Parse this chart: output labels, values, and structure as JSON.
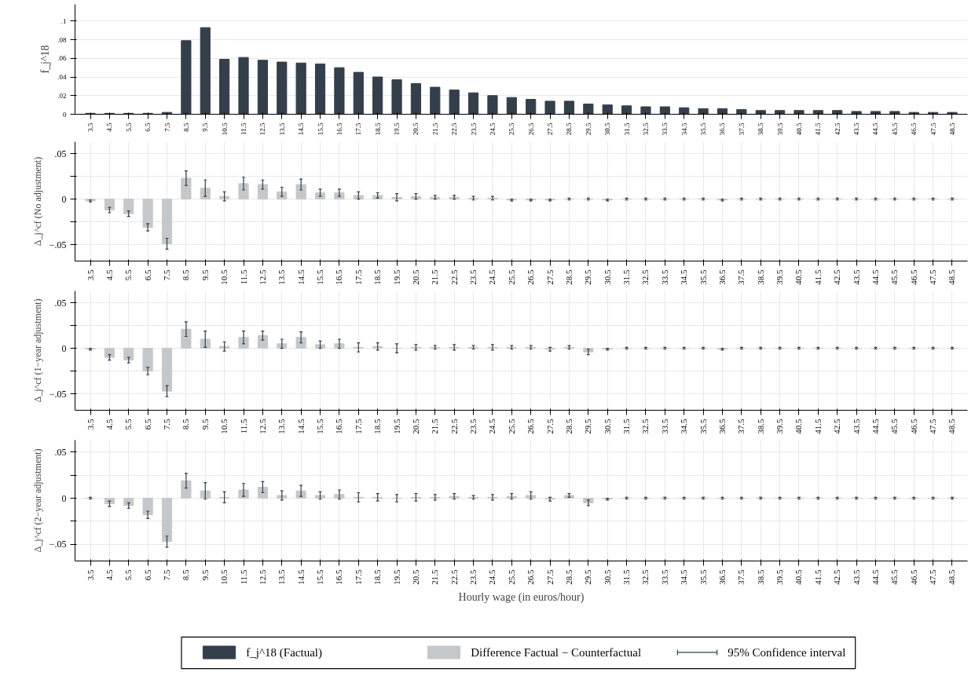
{
  "chart_data": [
    {
      "type": "bar",
      "ylabel": "f_j^18",
      "categories": [
        "3.5",
        "4.5",
        "5.5",
        "6.5",
        "7.5",
        "8.5",
        "9.5",
        "10.5",
        "11.5",
        "12.5",
        "13.5",
        "14.5",
        "15.5",
        "16.5",
        "17.5",
        "18.5",
        "19.5",
        "20.5",
        "21.5",
        "22.5",
        "23.5",
        "24.5",
        "25.5",
        "26.5",
        "27.5",
        "28.5",
        "29.5",
        "30.5",
        "31.5",
        "32.5",
        "33.5",
        "34.5",
        "35.5",
        "36.5",
        "37.5",
        "38.5",
        "39.5",
        "40.5",
        "41.5",
        "42.5",
        "43.5",
        "44.5",
        "45.5",
        "46.5",
        "47.5",
        "48.5"
      ],
      "series": [
        {
          "name": "f_j^18 (Factual)",
          "color": "#333f4a",
          "values": [
            0.001,
            0.001,
            0.001,
            0.001,
            0.002,
            0.079,
            0.093,
            0.059,
            0.061,
            0.058,
            0.056,
            0.055,
            0.054,
            0.05,
            0.045,
            0.04,
            0.037,
            0.033,
            0.029,
            0.026,
            0.023,
            0.02,
            0.018,
            0.016,
            0.014,
            0.014,
            0.011,
            0.01,
            0.009,
            0.008,
            0.008,
            0.007,
            0.006,
            0.006,
            0.005,
            0.004,
            0.004,
            0.004,
            0.004,
            0.004,
            0.003,
            0.003,
            0.003,
            0.002,
            0.002,
            0.002
          ]
        }
      ],
      "ylim": [
        0,
        0.118
      ],
      "yticks": [
        0,
        {
          "value": 0.02,
          "label": ".02"
        },
        {
          "value": 0.04,
          "label": ".04"
        },
        {
          "value": 0.06,
          "label": ".06"
        },
        {
          "value": 0.08,
          "label": ".08"
        },
        {
          "value": 0.1,
          "label": ".1"
        }
      ],
      "grid": "y",
      "legend": "bottom"
    },
    {
      "type": "bar",
      "ylabel": "Δ_j^cf (No adjustment)",
      "categories": [
        "3.5",
        "4.5",
        "5.5",
        "6.5",
        "7.5",
        "8.5",
        "9.5",
        "10.5",
        "11.5",
        "12.5",
        "13.5",
        "14.5",
        "15.5",
        "16.5",
        "17.5",
        "18.5",
        "19.5",
        "20.5",
        "21.5",
        "22.5",
        "23.5",
        "24.5",
        "25.5",
        "26.5",
        "27.5",
        "28.5",
        "29.5",
        "30.5",
        "31.5",
        "32.5",
        "33.5",
        "34.5",
        "35.5",
        "36.5",
        "37.5",
        "38.5",
        "39.5",
        "40.5",
        "41.5",
        "42.5",
        "43.5",
        "44.5",
        "45.5",
        "46.5",
        "47.5",
        "48.5"
      ],
      "series": [
        {
          "name": "Difference Factual − Counterfactual",
          "color": "#c5c8cb",
          "values": [
            -0.002,
            -0.012,
            -0.016,
            -0.031,
            -0.049,
            0.023,
            0.012,
            0.003,
            0.017,
            0.016,
            0.008,
            0.016,
            0.007,
            0.007,
            0.004,
            0.004,
            0.002,
            0.003,
            0.002,
            0.002,
            0.001,
            0.001,
            -0.001,
            -0.001,
            -0.001,
            0,
            0,
            -0.001,
            0,
            0,
            0,
            0,
            0,
            -0.001,
            0,
            0,
            0,
            0,
            0,
            0,
            0,
            0,
            0,
            0,
            0,
            0
          ],
          "errors": [
            0.001,
            0.003,
            0.003,
            0.004,
            0.006,
            0.008,
            0.009,
            0.005,
            0.007,
            0.005,
            0.005,
            0.006,
            0.004,
            0.004,
            0.004,
            0.003,
            0.004,
            0.003,
            0.002,
            0.002,
            0.002,
            0.002,
            0.001,
            0.001,
            0.001,
            0.001,
            0.001,
            0.001,
            0.001,
            0.001,
            0.001,
            0.001,
            0.001,
            0.001,
            0.001,
            0.001,
            0.001,
            0.001,
            0.001,
            0.001,
            0.001,
            0.001,
            0.001,
            0.001,
            0.001,
            0.001
          ]
        }
      ],
      "ylim": [
        -0.068,
        0.063
      ],
      "yticks": [
        {
          "value": -0.05,
          "label": "−.05"
        },
        {
          "value": -0.025,
          "label": null
        },
        0,
        {
          "value": 0.025,
          "label": null
        },
        {
          "value": 0.05,
          "label": ".05"
        }
      ],
      "grid": true,
      "legend": "bottom"
    },
    {
      "type": "bar",
      "ylabel": "Δ_j^cf (1−year adjustment)",
      "categories": [
        "3.5",
        "4.5",
        "5.5",
        "6.5",
        "7.5",
        "8.5",
        "9.5",
        "10.5",
        "11.5",
        "12.5",
        "13.5",
        "14.5",
        "15.5",
        "16.5",
        "17.5",
        "18.5",
        "19.5",
        "20.5",
        "21.5",
        "22.5",
        "23.5",
        "24.5",
        "25.5",
        "26.5",
        "27.5",
        "28.5",
        "29.5",
        "30.5",
        "31.5",
        "32.5",
        "33.5",
        "34.5",
        "35.5",
        "36.5",
        "37.5",
        "38.5",
        "39.5",
        "40.5",
        "41.5",
        "42.5",
        "43.5",
        "44.5",
        "45.5",
        "46.5",
        "47.5",
        "48.5"
      ],
      "series": [
        {
          "name": "Difference Factual − Counterfactual",
          "color": "#c5c8cb",
          "values": [
            -0.001,
            -0.01,
            -0.013,
            -0.025,
            -0.047,
            0.021,
            0.01,
            0.002,
            0.012,
            0.014,
            0.005,
            0.012,
            0.004,
            0.005,
            0.001,
            0.002,
            0,
            0.001,
            0.001,
            0.001,
            0.001,
            0.001,
            0.001,
            0.001,
            -0.001,
            0.001,
            -0.004,
            -0.001,
            0,
            0,
            0,
            0,
            0,
            -0.001,
            0,
            0,
            0,
            0,
            0,
            0,
            0,
            0,
            0,
            0,
            0,
            0
          ],
          "errors": [
            0.001,
            0.003,
            0.003,
            0.004,
            0.006,
            0.008,
            0.009,
            0.005,
            0.007,
            0.005,
            0.005,
            0.006,
            0.004,
            0.005,
            0.005,
            0.004,
            0.005,
            0.003,
            0.002,
            0.003,
            0.002,
            0.003,
            0.002,
            0.002,
            0.002,
            0.002,
            0.003,
            0.001,
            0.001,
            0.001,
            0.001,
            0.001,
            0.001,
            0.001,
            0.001,
            0.001,
            0.001,
            0.001,
            0.001,
            0.001,
            0.001,
            0.001,
            0.001,
            0.001,
            0.001,
            0.001
          ]
        }
      ],
      "ylim": [
        -0.068,
        0.063
      ],
      "yticks": [
        {
          "value": -0.05,
          "label": "−.05"
        },
        {
          "value": -0.025,
          "label": null
        },
        0,
        {
          "value": 0.025,
          "label": null
        },
        {
          "value": 0.05,
          "label": ".05"
        }
      ],
      "grid": true,
      "legend": "bottom"
    },
    {
      "type": "bar",
      "xlabel": "Hourly wage (in euros/hour)",
      "ylabel": "Δ_j^cf (2−year adjustment)",
      "categories": [
        "3.5",
        "4.5",
        "5.5",
        "6.5",
        "7.5",
        "8.5",
        "9.5",
        "10.5",
        "11.5",
        "12.5",
        "13.5",
        "14.5",
        "15.5",
        "16.5",
        "17.5",
        "18.5",
        "19.5",
        "20.5",
        "21.5",
        "22.5",
        "23.5",
        "24.5",
        "25.5",
        "26.5",
        "27.5",
        "28.5",
        "29.5",
        "30.5",
        "31.5",
        "32.5",
        "33.5",
        "34.5",
        "35.5",
        "36.5",
        "37.5",
        "38.5",
        "39.5",
        "40.5",
        "41.5",
        "42.5",
        "43.5",
        "44.5",
        "45.5",
        "46.5",
        "47.5",
        "48.5"
      ],
      "series": [
        {
          "name": "Difference Factual − Counterfactual",
          "color": "#c5c8cb",
          "values": [
            0,
            -0.006,
            -0.008,
            -0.018,
            -0.047,
            0.019,
            0.008,
            0.001,
            0.009,
            0.012,
            0.003,
            0.008,
            0.003,
            0.004,
            0.001,
            0.001,
            0,
            0.001,
            0.001,
            0.002,
            0.001,
            0.001,
            0.002,
            0.003,
            -0.001,
            0.003,
            -0.005,
            -0.001,
            0,
            0,
            0,
            0,
            0,
            0,
            0,
            0,
            0,
            0,
            0,
            0,
            0,
            0,
            0,
            0,
            0,
            0
          ],
          "errors": [
            0.001,
            0.003,
            0.003,
            0.004,
            0.006,
            0.008,
            0.009,
            0.006,
            0.007,
            0.006,
            0.005,
            0.006,
            0.004,
            0.005,
            0.005,
            0.004,
            0.004,
            0.004,
            0.003,
            0.003,
            0.002,
            0.003,
            0.003,
            0.004,
            0.002,
            0.002,
            0.003,
            0.001,
            0.001,
            0.001,
            0.001,
            0.001,
            0.001,
            0.001,
            0.001,
            0.001,
            0.001,
            0.001,
            0.001,
            0.001,
            0.001,
            0.001,
            0.001,
            0.001,
            0.001,
            0.001
          ]
        }
      ],
      "ylim": [
        -0.068,
        0.063
      ],
      "yticks": [
        {
          "value": -0.05,
          "label": "−.05"
        },
        {
          "value": -0.025,
          "label": null
        },
        0,
        {
          "value": 0.025,
          "label": null
        },
        {
          "value": 0.05,
          "label": ".05"
        }
      ],
      "grid": true,
      "legend": "bottom",
      "annotations": [
        "95% Confidence interval"
      ]
    }
  ]
}
